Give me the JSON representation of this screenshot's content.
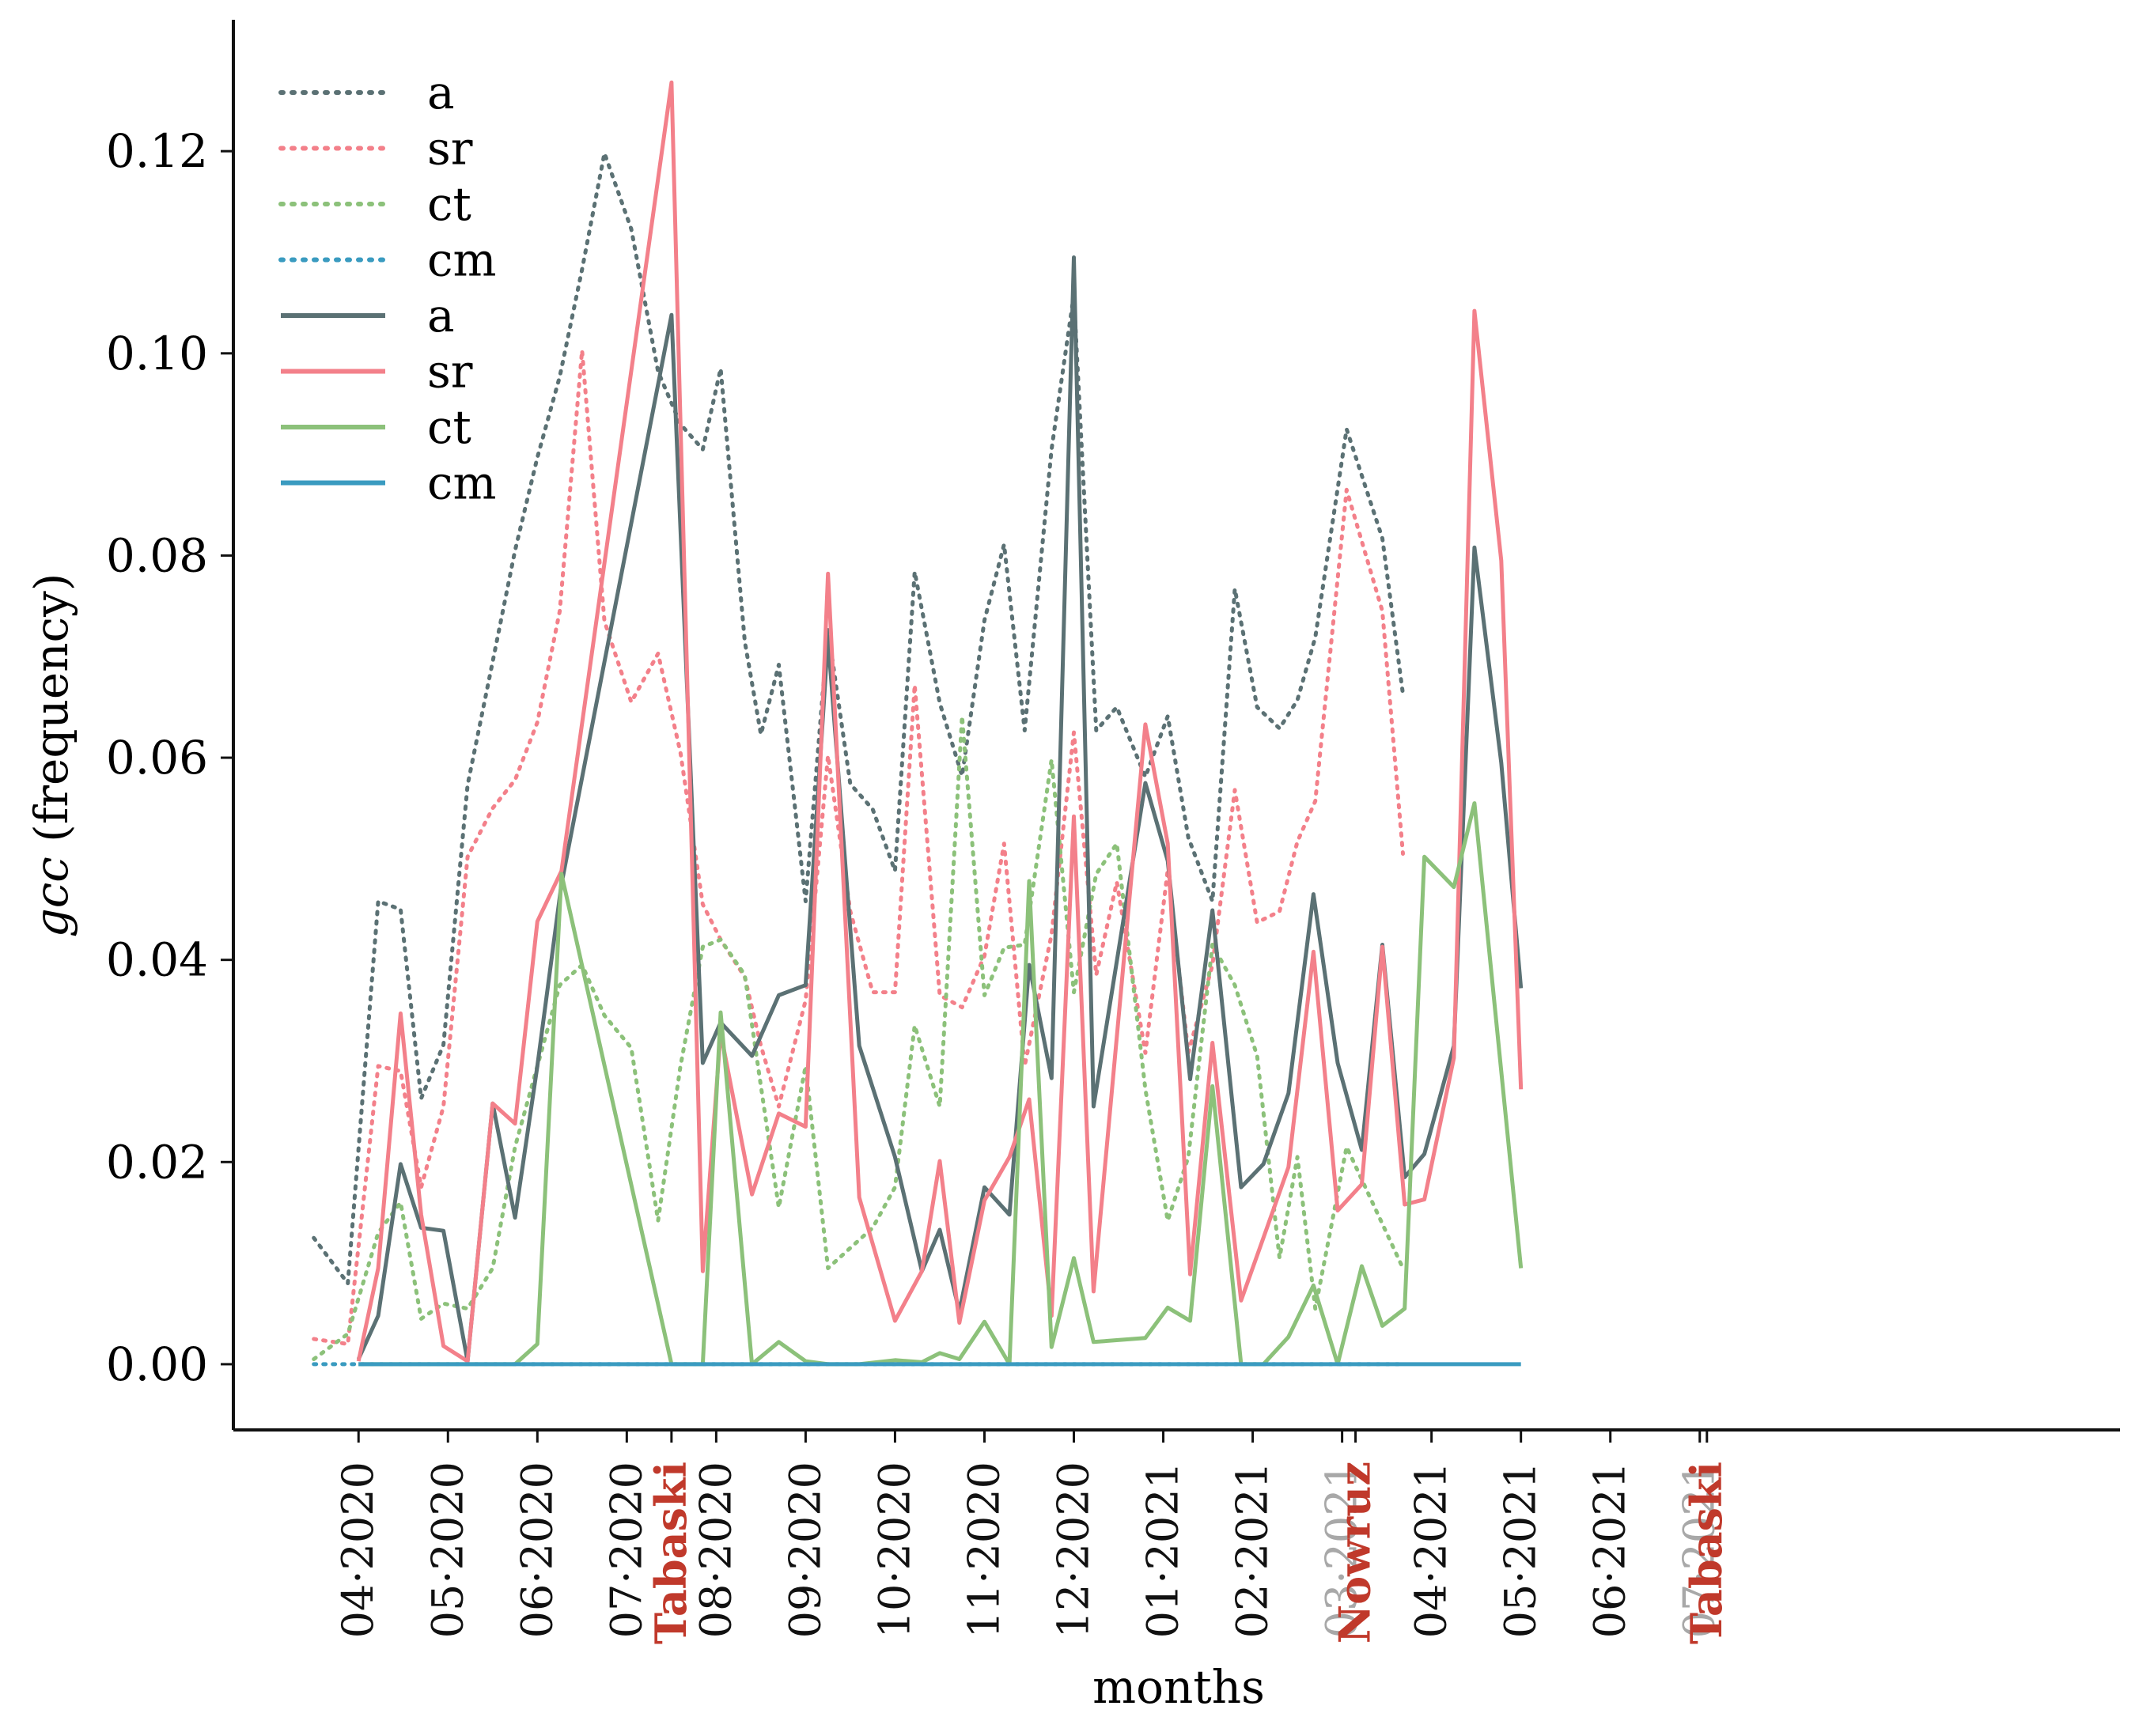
{
  "chart_data": {
    "type": "line",
    "title": "",
    "xlabel": "months",
    "ylabel_italic": "gcc",
    "ylabel_suffix": " (frequency)",
    "ylim": [
      -0.0065,
      0.133
    ],
    "yticks": [
      0.0,
      0.02,
      0.04,
      0.06,
      0.08,
      0.1,
      0.12
    ],
    "ytick_labels": [
      "0.00",
      "0.02",
      "0.04",
      "0.06",
      "0.08",
      "0.10",
      "0.12"
    ],
    "xlim": [
      -0.9,
      20.2
    ],
    "xticks": [
      {
        "x": 0.5,
        "label": "04·2020",
        "kind": "month"
      },
      {
        "x": 1.5,
        "label": "05·2020",
        "kind": "month"
      },
      {
        "x": 2.5,
        "label": "06·2020",
        "kind": "month"
      },
      {
        "x": 3.5,
        "label": "07·2020",
        "kind": "month"
      },
      {
        "x": 4.0,
        "label": "Tabaski",
        "kind": "event"
      },
      {
        "x": 4.5,
        "label": "08·2020",
        "kind": "month"
      },
      {
        "x": 5.5,
        "label": "09·2020",
        "kind": "month"
      },
      {
        "x": 6.5,
        "label": "10·2020",
        "kind": "month"
      },
      {
        "x": 7.5,
        "label": "11·2020",
        "kind": "month"
      },
      {
        "x": 8.5,
        "label": "12·2020",
        "kind": "month"
      },
      {
        "x": 9.5,
        "label": "01·2021",
        "kind": "month"
      },
      {
        "x": 10.5,
        "label": "02·2021",
        "kind": "month"
      },
      {
        "x": 11.5,
        "label": "03·2021",
        "kind": "month-faded"
      },
      {
        "x": 11.65,
        "label": "Nowruz",
        "kind": "event"
      },
      {
        "x": 12.5,
        "label": "04·2021",
        "kind": "month"
      },
      {
        "x": 13.5,
        "label": "05·2021",
        "kind": "month"
      },
      {
        "x": 14.5,
        "label": "06·2021",
        "kind": "month"
      },
      {
        "x": 15.5,
        "label": "07·2021",
        "kind": "month-faded"
      },
      {
        "x": 15.58,
        "label": "Tabaski",
        "kind": "event"
      }
    ],
    "legend_position": "upper-left",
    "legend_entries": [
      {
        "label": "a",
        "style": "dotted",
        "color": "#5b7174"
      },
      {
        "label": "sr",
        "style": "dotted",
        "color": "#f3808a"
      },
      {
        "label": "ct",
        "style": "dotted",
        "color": "#8cc17a"
      },
      {
        "label": "cm",
        "style": "dotted",
        "color": "#3a9bc0"
      },
      {
        "label": "a",
        "style": "solid",
        "color": "#5b7174"
      },
      {
        "label": "sr",
        "style": "solid",
        "color": "#f3808a"
      },
      {
        "label": "ct",
        "style": "solid",
        "color": "#8cc17a"
      },
      {
        "label": "cm",
        "style": "solid",
        "color": "#3a9bc0"
      }
    ],
    "x": [
      0.0,
      0.5,
      0.72,
      0.97,
      1.2,
      1.45,
      1.72,
      2.0,
      2.25,
      2.5,
      2.75,
      3.0,
      3.25,
      3.5,
      4.0,
      4.35,
      4.55,
      4.9,
      5.2,
      5.5,
      5.75,
      6.0,
      6.25,
      6.5,
      6.8,
      7.0,
      7.22,
      7.5,
      7.78,
      8.0,
      8.25,
      8.5,
      8.72,
      8.97,
      9.25,
      9.5,
      9.8,
      10.05,
      10.37,
      10.62,
      10.9,
      11.18,
      11.45,
      11.72,
      11.95,
      12.2,
      12.42,
      12.75,
      12.98,
      13.28,
      13.5,
      13.8,
      14.05,
      14.48,
      14.75,
      14.98,
      15.3,
      15.58,
      15.78,
      16.0,
      16.22
    ],
    "series": [
      {
        "name": "a",
        "style": "dotted",
        "color": "#5b7174",
        "values": [
          0.0125,
          0.008,
          0.0458,
          0.045,
          0.0263,
          0.0316,
          0.0573,
          0.0695,
          0.0805,
          0.0897,
          0.0977,
          0.1083,
          0.1198,
          0.1123,
          0.0982,
          0.093,
          0.0905,
          0.0985,
          0.0715,
          0.0623,
          0.0692,
          0.0458,
          0.0727,
          0.0574,
          0.0549,
          0.0488,
          0.0784,
          0.0654,
          0.0582,
          0.0736,
          0.0811,
          0.0627,
          0.0905,
          0.1058,
          0.0627,
          0.065,
          0.0581,
          0.0641,
          0.0521,
          0.0458,
          0.0767,
          0.065,
          0.0629,
          0.0657,
          0.0719,
          0.0925,
          0.0817,
          0.0663,
          null,
          null,
          null,
          null,
          null,
          null,
          null,
          null,
          null,
          null,
          null,
          null,
          null
        ]
      },
      {
        "name": "sr",
        "style": "dotted",
        "color": "#f3808a",
        "values": [
          0.0025,
          0.002,
          0.0295,
          0.029,
          0.0175,
          0.0255,
          0.0502,
          0.055,
          0.0578,
          0.0635,
          0.0745,
          0.1003,
          0.0735,
          0.0655,
          0.0703,
          0.0605,
          0.0455,
          0.042,
          0.0383,
          0.0315,
          0.0255,
          0.036,
          0.0602,
          0.0448,
          0.0368,
          0.0368,
          0.0672,
          0.0365,
          0.0353,
          0.0404,
          0.0515,
          0.0295,
          0.0425,
          0.0625,
          0.0385,
          0.0477,
          0.0308,
          0.0489,
          0.0308,
          0.0395,
          0.0568,
          0.0437,
          0.0448,
          0.0517,
          0.0557,
          0.0865,
          0.0745,
          0.0505,
          null,
          null,
          null,
          null,
          null,
          null,
          null,
          null,
          null,
          null,
          null,
          null,
          null
        ]
      },
      {
        "name": "ct",
        "style": "dotted",
        "color": "#8cc17a",
        "values": [
          0.0005,
          0.003,
          0.013,
          0.016,
          0.0045,
          0.006,
          0.0055,
          0.0095,
          0.0215,
          0.0295,
          0.0375,
          0.0395,
          0.0345,
          0.0313,
          0.0142,
          0.0295,
          0.0413,
          0.042,
          0.0385,
          0.0275,
          0.0155,
          0.0295,
          0.0095,
          0.0115,
          0.0135,
          0.0175,
          0.0335,
          0.0255,
          0.0641,
          0.0365,
          0.0412,
          0.0415,
          0.0598,
          0.0368,
          0.0485,
          0.0515,
          0.0272,
          0.0142,
          0.0205,
          0.0415,
          0.0375,
          0.0305,
          0.0105,
          0.0205,
          0.0055,
          0.0215,
          0.0095,
          null,
          null,
          null,
          null,
          null,
          null,
          null,
          null,
          null,
          null,
          null,
          null,
          null,
          null
        ]
      },
      {
        "name": "cm",
        "style": "dotted",
        "color": "#3a9bc0",
        "values": [
          0.0,
          0.0,
          0.0,
          0.0,
          0.0,
          0.0,
          0.0,
          0.0,
          0.0,
          0.0,
          0.0,
          0.0,
          0.0,
          0.0,
          0.0,
          0.0,
          0.0,
          0.0,
          0.0,
          0.0,
          0.0,
          0.0,
          0.0,
          0.0,
          0.0,
          0.0,
          0.0,
          0.0,
          0.0,
          0.0,
          0.0,
          0.0,
          0.0,
          0.0,
          0.0,
          0.0,
          0.0,
          0.0,
          0.0,
          0.0,
          0.0,
          0.0,
          0.0,
          0.0,
          0.0,
          0.0,
          0.0,
          0.0,
          null,
          null,
          null,
          null,
          null,
          null,
          null,
          null,
          null,
          null,
          null,
          null,
          null
        ]
      },
      {
        "name": "a",
        "style": "solid",
        "color": "#5b7174",
        "values": [
          0.0005,
          0.0048,
          0.0198,
          0.0135,
          0.0132,
          0.0003,
          0.0258,
          0.0145,
          0.0295,
          0.0475,
          0.1038,
          0.0298,
          0.0338,
          0.0305,
          0.0365,
          0.0375,
          0.0718,
          0.0315,
          0.0205,
          0.0092,
          0.0133,
          0.0052,
          0.0175,
          0.0148,
          0.0395,
          0.0283,
          0.1095,
          0.0255,
          0.0575,
          0.0498,
          0.0282,
          0.0449,
          0.0175,
          0.0198,
          0.0268,
          0.0465,
          0.0298,
          0.0212,
          0.0415,
          0.0185,
          0.0208,
          0.0315,
          0.0808,
          0.0595,
          0.0372,
          null,
          null,
          null,
          null,
          null,
          null,
          null,
          null,
          null,
          null,
          null,
          null,
          null,
          null,
          null,
          null
        ]
      },
      {
        "name": "sr",
        "style": "solid",
        "color": "#f3808a",
        "values": [
          0.0003,
          0.0095,
          0.0347,
          0.0148,
          0.0018,
          0.0003,
          0.0258,
          0.0238,
          0.0438,
          0.0488,
          0.1268,
          0.0092,
          0.0328,
          0.0168,
          0.0248,
          0.0235,
          0.0782,
          0.0165,
          0.0043,
          0.0092,
          0.0201,
          0.0041,
          0.0162,
          0.0205,
          0.0262,
          0.0048,
          0.0542,
          0.0072,
          0.0633,
          0.0515,
          0.0089,
          0.0318,
          0.0063,
          0.0125,
          0.0195,
          0.0408,
          0.0152,
          0.0178,
          0.0413,
          0.0158,
          0.0163,
          0.0303,
          0.1042,
          0.0795,
          0.0272,
          null,
          null,
          null,
          null,
          null,
          null,
          null,
          null,
          null,
          null,
          null,
          null,
          null,
          null,
          null,
          null
        ]
      },
      {
        "name": "ct",
        "style": "solid",
        "color": "#8cc17a",
        "values": [
          0.0,
          0.0,
          0.0,
          0.0,
          0.0,
          0.0,
          0.0,
          0.0,
          0.002,
          0.0485,
          0.0,
          0.0,
          0.0348,
          0.0,
          0.0022,
          0.0003,
          0.0,
          0.0,
          0.0004,
          0.0002,
          0.0011,
          0.0005,
          0.0042,
          0.0,
          0.0478,
          0.0017,
          0.0105,
          0.0022,
          0.0026,
          0.0056,
          0.0043,
          0.0275,
          0.0,
          0.0,
          0.0027,
          0.0078,
          0.0,
          0.0097,
          0.0038,
          0.0055,
          0.0502,
          0.0472,
          0.0555,
          0.0095,
          null,
          null,
          null,
          null,
          null,
          null,
          null,
          null,
          null,
          null,
          null,
          null,
          null,
          null,
          null,
          null,
          null
        ]
      },
      {
        "name": "cm",
        "style": "solid",
        "color": "#3a9bc0",
        "values": [
          0.0,
          0.0,
          0.0,
          0.0,
          0.0,
          0.0,
          0.0,
          0.0,
          0.0,
          0.0,
          0.0,
          0.0,
          0.0,
          0.0,
          0.0,
          0.0,
          0.0,
          0.0,
          0.0,
          0.0,
          0.0,
          0.0,
          0.0,
          0.0,
          0.0,
          0.0,
          0.0,
          0.0,
          0.0,
          0.0,
          0.0,
          0.0,
          0.0,
          0.0,
          0.0,
          0.0,
          0.0,
          0.0,
          0.0,
          0.0,
          0.0,
          0.0,
          0.0,
          0.0,
          0.0,
          null,
          null,
          null,
          null,
          null,
          null,
          null,
          null,
          null,
          null,
          null,
          null,
          null,
          null,
          null,
          null
        ]
      }
    ],
    "series_x": {
      "a_dotted": [
        0.0,
        0.38,
        0.72,
        0.97,
        1.2,
        1.45,
        1.72,
        2.0,
        2.25,
        2.5,
        2.75,
        3.0,
        3.25,
        3.55,
        3.85,
        4.1,
        4.35,
        4.55,
        4.82,
        5.0,
        5.2,
        5.5,
        5.75,
        6.0,
        6.25,
        6.5,
        6.72,
        7.0,
        7.25,
        7.5,
        7.72,
        7.95,
        8.25,
        8.5,
        8.75,
        8.98,
        9.3,
        9.55,
        9.78,
        10.05,
        10.3,
        10.55,
        10.8,
        11.0,
        11.2,
        11.55,
        11.95,
        12.18
      ],
      "sr_dotted": [
        0.0,
        0.38,
        0.72,
        0.97,
        1.2,
        1.45,
        1.72,
        2.0,
        2.25,
        2.5,
        2.75,
        3.0,
        3.25,
        3.55,
        3.85,
        4.1,
        4.35,
        4.55,
        4.82,
        5.0,
        5.2,
        5.5,
        5.75,
        6.0,
        6.25,
        6.5,
        6.72,
        7.0,
        7.25,
        7.5,
        7.72,
        7.95,
        8.25,
        8.5,
        8.75,
        8.98,
        9.3,
        9.55,
        9.78,
        10.05,
        10.3,
        10.55,
        10.8,
        11.0,
        11.2,
        11.55,
        11.95,
        12.18
      ],
      "ct_dotted": [
        0.0,
        0.38,
        0.72,
        0.97,
        1.2,
        1.45,
        1.72,
        2.0,
        2.25,
        2.5,
        2.75,
        3.0,
        3.25,
        3.55,
        3.85,
        4.1,
        4.35,
        4.55,
        4.82,
        5.0,
        5.2,
        5.5,
        5.75,
        6.0,
        6.25,
        6.5,
        6.72,
        7.0,
        7.25,
        7.5,
        7.72,
        7.95,
        8.25,
        8.5,
        8.75,
        8.98,
        9.3,
        9.55,
        9.78,
        10.05,
        10.3,
        10.55,
        10.8,
        11.0,
        11.2,
        11.55,
        12.18
      ],
      "cm_dotted": [
        0.0,
        0.38,
        0.72,
        0.97,
        1.2,
        1.45,
        1.72,
        2.0,
        2.25,
        2.5,
        2.75,
        3.0,
        3.25,
        3.55,
        3.85,
        4.1,
        4.35,
        4.55,
        4.82,
        5.0,
        5.2,
        5.5,
        5.75,
        6.0,
        6.25,
        6.5,
        6.72,
        7.0,
        7.25,
        7.5,
        7.72,
        7.95,
        8.25,
        8.5,
        8.75,
        8.98,
        9.3,
        9.55,
        9.78,
        10.05,
        10.3,
        10.55,
        10.8,
        11.0,
        11.2,
        11.55,
        11.95,
        12.18
      ],
      "a_solid": [
        0.5,
        0.72,
        0.97,
        1.2,
        1.45,
        1.72,
        2.0,
        2.25,
        2.5,
        2.77,
        4.0,
        4.35,
        4.55,
        4.9,
        5.2,
        5.5,
        5.75,
        6.1,
        6.5,
        6.8,
        7.0,
        7.22,
        7.5,
        7.78,
        8.0,
        8.25,
        8.5,
        8.72,
        9.3,
        9.55,
        9.8,
        10.05,
        10.37,
        10.62,
        10.9,
        11.18,
        11.45,
        11.72,
        11.95,
        12.2,
        12.42,
        12.75,
        12.98,
        13.28,
        13.5
      ],
      "sr_solid": [
        0.5,
        0.72,
        0.97,
        1.2,
        1.45,
        1.72,
        2.0,
        2.25,
        2.5,
        2.77,
        4.0,
        4.35,
        4.55,
        4.9,
        5.2,
        5.5,
        5.75,
        6.1,
        6.5,
        6.8,
        7.0,
        7.22,
        7.5,
        7.78,
        8.0,
        8.25,
        8.5,
        8.72,
        9.3,
        9.55,
        9.8,
        10.05,
        10.37,
        10.62,
        10.9,
        11.18,
        11.45,
        11.72,
        11.95,
        12.2,
        12.42,
        12.75,
        12.98,
        13.28,
        13.5
      ],
      "ct_solid": [
        0.5,
        0.72,
        0.97,
        1.2,
        1.45,
        1.72,
        2.0,
        2.25,
        2.5,
        2.77,
        4.0,
        4.35,
        4.55,
        4.9,
        5.2,
        5.5,
        5.75,
        6.1,
        6.5,
        6.8,
        7.0,
        7.22,
        7.5,
        7.78,
        8.0,
        8.25,
        8.5,
        8.72,
        9.3,
        9.55,
        9.8,
        10.05,
        10.37,
        10.62,
        10.9,
        11.18,
        11.45,
        11.72,
        11.95,
        12.2,
        12.42,
        12.75,
        12.98,
        13.5
      ],
      "cm_solid": [
        0.5,
        0.72,
        0.97,
        1.2,
        1.45,
        1.72,
        2.0,
        2.25,
        2.5,
        2.77,
        4.0,
        4.35,
        4.55,
        4.9,
        5.2,
        5.5,
        5.75,
        6.1,
        6.5,
        6.8,
        7.0,
        7.22,
        7.5,
        7.78,
        8.0,
        8.25,
        8.5,
        8.72,
        9.3,
        9.55,
        9.8,
        10.05,
        10.37,
        10.62,
        10.9,
        11.18,
        11.45,
        11.72,
        11.95,
        12.2,
        12.42,
        12.75,
        12.98,
        13.28,
        13.5
      ]
    },
    "colors": {
      "axis": "#111111",
      "event_label": "#c0392b",
      "faded_label": "#a8a8a8"
    }
  }
}
